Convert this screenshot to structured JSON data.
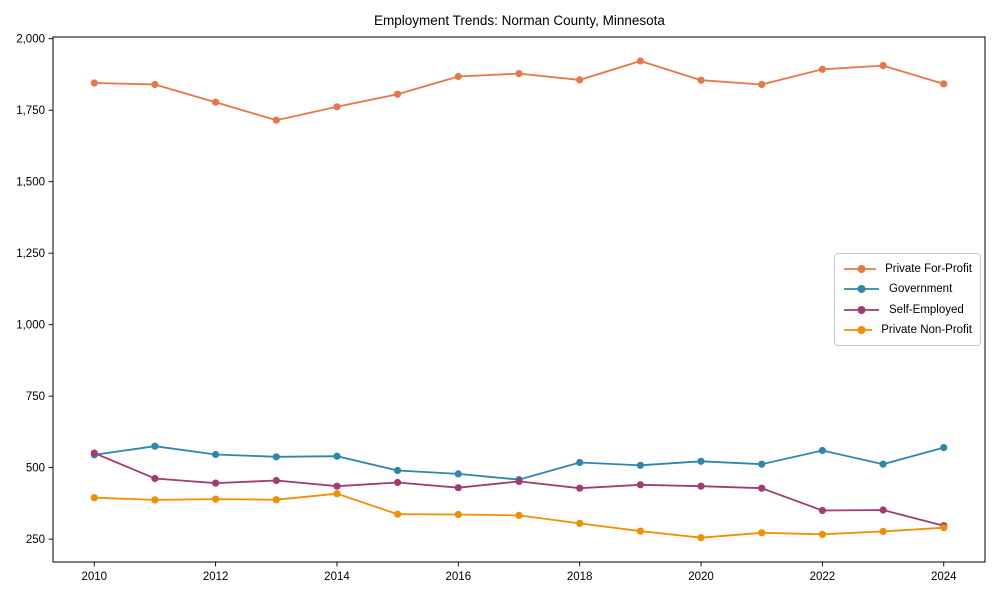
{
  "chart_data": {
    "type": "line",
    "title": "Employment Trends: Norman County, Minnesota",
    "xlabel": "",
    "ylabel": "",
    "x": [
      2010,
      2011,
      2012,
      2013,
      2014,
      2015,
      2016,
      2017,
      2018,
      2019,
      2020,
      2021,
      2022,
      2023,
      2024
    ],
    "series": [
      {
        "name": "Private For-Profit",
        "color": "#E8764B",
        "values": [
          1845,
          1840,
          1778,
          1715,
          1762,
          1806,
          1868,
          1878,
          1856,
          1922,
          1855,
          1840,
          1893,
          1906,
          1842
        ]
      },
      {
        "name": "Government",
        "color": "#2E86AB",
        "values": [
          545,
          575,
          546,
          538,
          540,
          490,
          478,
          458,
          518,
          508,
          522,
          512,
          560,
          512,
          570
        ]
      },
      {
        "name": "Self-Employed",
        "color": "#A23B72",
        "values": [
          551,
          462,
          446,
          455,
          435,
          448,
          430,
          452,
          428,
          440,
          435,
          428,
          350,
          352,
          297
        ]
      },
      {
        "name": "Private Non-Profit",
        "color": "#F18F01",
        "values": [
          395,
          387,
          390,
          388,
          409,
          337,
          336,
          333,
          305,
          278,
          255,
          272,
          267,
          277,
          290
        ]
      }
    ],
    "x_ticks": {
      "values": [
        2010,
        2012,
        2014,
        2016,
        2018,
        2020,
        2022,
        2024
      ],
      "labels": [
        "2010",
        "2012",
        "2014",
        "2016",
        "2018",
        "2020",
        "2022",
        "2024"
      ]
    },
    "y_ticks": {
      "values": [
        250,
        500,
        750,
        1000,
        1250,
        1500,
        1750,
        2000
      ],
      "labels": [
        "250",
        "500",
        "750",
        "1,000",
        "1,250",
        "1,500",
        "1,750",
        "2,000"
      ]
    },
    "xlim": [
      2009.32,
      2024.68
    ],
    "ylim": [
      170,
      2006
    ],
    "grid": false,
    "legend_position": "center-right",
    "axis_color": "#000000",
    "background": "#ffffff"
  }
}
